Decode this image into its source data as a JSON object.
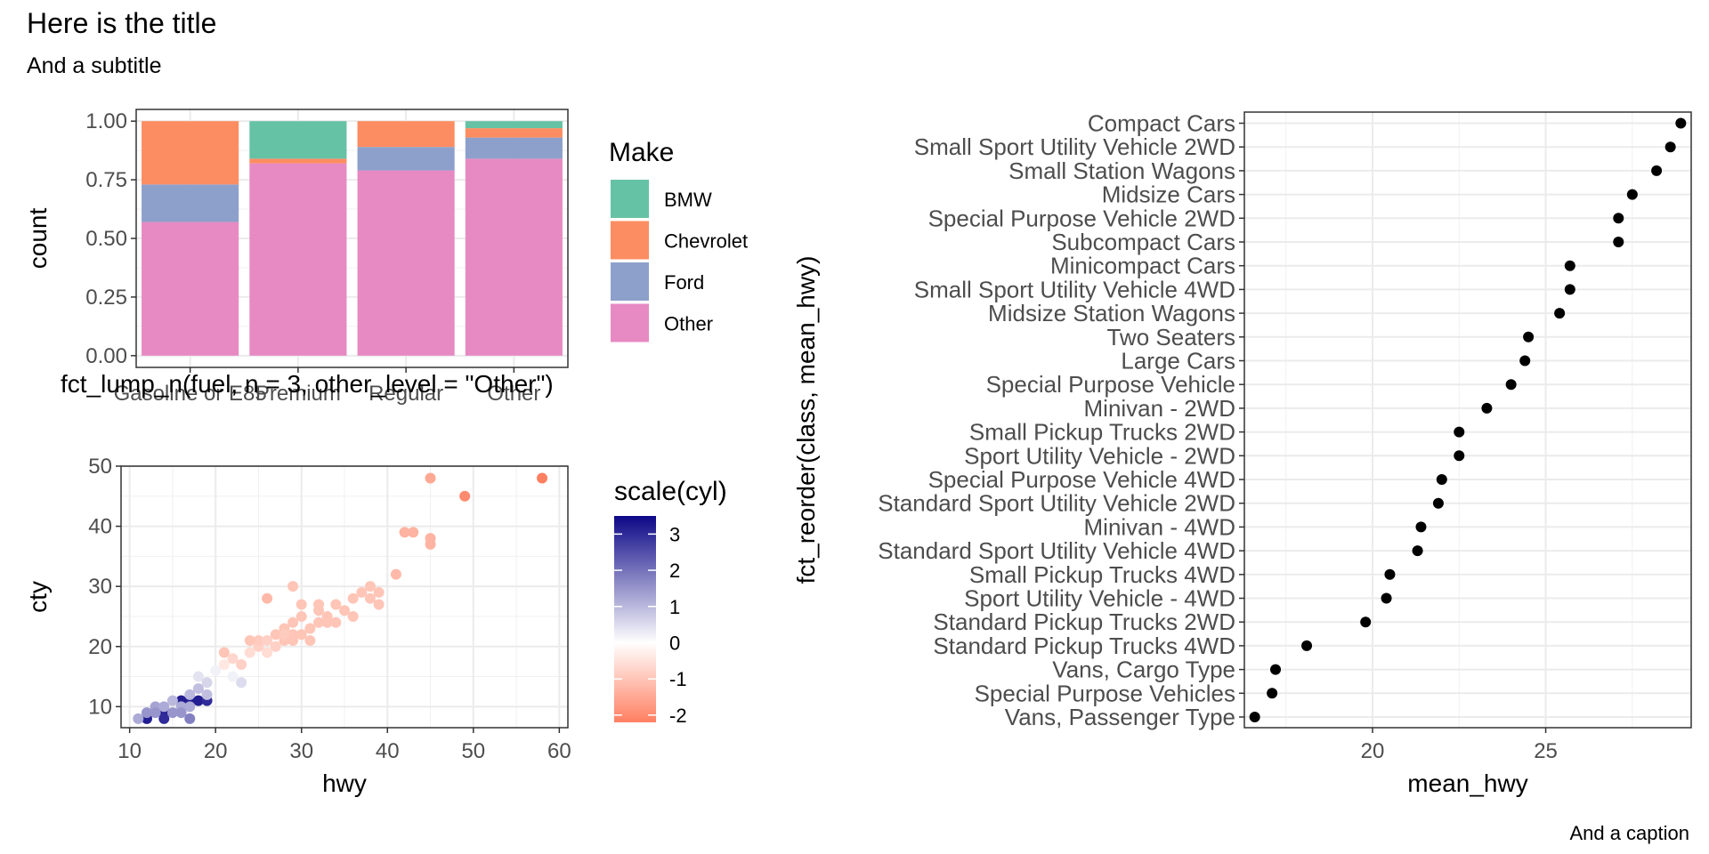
{
  "page": {
    "title": "Here is the title",
    "subtitle": "And a subtitle",
    "caption": "And a caption"
  },
  "chart_data": [
    {
      "type": "bar",
      "stacked": "fill",
      "xlabel": "fct_lump_n(fuel, n = 3, other_level = \"Other\")",
      "ylabel": "count",
      "ylim": [
        0,
        1
      ],
      "yticks": [
        "0.00",
        "0.25",
        "0.50",
        "0.75",
        "1.00"
      ],
      "categories": [
        "Gasoline or E85",
        "Premium",
        "Regular",
        "Other"
      ],
      "series": [
        {
          "name": "Other",
          "color": "#E78AC3",
          "values": [
            0.57,
            0.82,
            0.79,
            0.84
          ]
        },
        {
          "name": "Ford",
          "color": "#8DA0CB",
          "values": [
            0.16,
            0.0,
            0.1,
            0.09
          ]
        },
        {
          "name": "Chevrolet",
          "color": "#FC8D62",
          "values": [
            0.27,
            0.02,
            0.11,
            0.04
          ]
        },
        {
          "name": "BMW",
          "color": "#66C2A5",
          "values": [
            0.0,
            0.16,
            0.0,
            0.03
          ]
        }
      ],
      "legend": {
        "title": "Make",
        "position": "right",
        "entries": [
          {
            "label": "BMW",
            "color": "#66C2A5"
          },
          {
            "label": "Chevrolet",
            "color": "#FC8D62"
          },
          {
            "label": "Ford",
            "color": "#8DA0CB"
          },
          {
            "label": "Other",
            "color": "#E78AC3"
          }
        ]
      }
    },
    {
      "type": "scatter",
      "xlabel": "hwy",
      "ylabel": "cty",
      "xlim": [
        9,
        61
      ],
      "ylim": [
        6.5,
        50
      ],
      "xticks": [
        10,
        20,
        30,
        40,
        50,
        60
      ],
      "yticks": [
        10,
        20,
        30,
        40,
        50
      ],
      "points": [
        [
          12,
          8,
          3.2
        ],
        [
          14,
          9,
          3.2
        ],
        [
          14,
          8,
          3.0
        ],
        [
          16,
          11,
          3.2
        ],
        [
          17,
          11,
          3.2
        ],
        [
          18,
          11,
          3.2
        ],
        [
          19,
          11,
          3.0
        ],
        [
          11,
          8,
          1.2
        ],
        [
          12,
          9,
          1.5
        ],
        [
          13,
          10,
          1.3
        ],
        [
          14,
          10,
          1.2
        ],
        [
          15,
          11,
          1.0
        ],
        [
          15,
          9,
          1.5
        ],
        [
          16,
          10,
          1.2
        ],
        [
          16,
          9,
          1.5
        ],
        [
          17,
          12,
          1.0
        ],
        [
          17,
          10,
          1.2
        ],
        [
          18,
          13,
          0.9
        ],
        [
          19,
          12,
          0.9
        ],
        [
          19,
          14,
          0.6
        ],
        [
          13,
          9,
          1.5
        ],
        [
          17,
          8,
          1.8
        ],
        [
          18,
          15,
          0.4
        ],
        [
          20,
          16,
          0.2
        ],
        [
          22,
          15,
          0.2
        ],
        [
          23,
          14,
          0.5
        ],
        [
          24,
          16,
          0.0
        ],
        [
          21,
          17,
          -0.4
        ],
        [
          22,
          18,
          -0.7
        ],
        [
          23,
          17,
          -0.8
        ],
        [
          24,
          19,
          -0.6
        ],
        [
          25,
          20,
          -0.8
        ],
        [
          26,
          19,
          -0.6
        ],
        [
          26,
          28,
          -1.2
        ],
        [
          27,
          20,
          -0.8
        ],
        [
          27,
          22,
          -1.0
        ],
        [
          28,
          21,
          -1.0
        ],
        [
          28,
          23,
          -1.0
        ],
        [
          29,
          22,
          -1.0
        ],
        [
          29,
          24,
          -1.0
        ],
        [
          29,
          21,
          -1.0
        ],
        [
          30,
          22,
          -1.0
        ],
        [
          30,
          25,
          -1.0
        ],
        [
          30,
          27,
          -1.0
        ],
        [
          31,
          23,
          -1.0
        ],
        [
          31,
          21,
          -1.0
        ],
        [
          32,
          24,
          -1.0
        ],
        [
          32,
          26,
          -1.0
        ],
        [
          32,
          27,
          -1.0
        ],
        [
          33,
          25,
          -1.0
        ],
        [
          33,
          24,
          -1.0
        ],
        [
          34,
          24,
          -1.0
        ],
        [
          34,
          27,
          -1.0
        ],
        [
          35,
          26,
          -1.0
        ],
        [
          36,
          28,
          -1.0
        ],
        [
          37,
          29,
          -1.0
        ],
        [
          36,
          25,
          -1.0
        ],
        [
          29,
          30,
          -1.0
        ],
        [
          25,
          21,
          -0.9
        ],
        [
          26,
          21,
          -0.8
        ],
        [
          28,
          22,
          -0.9
        ],
        [
          24,
          21,
          -1.0
        ],
        [
          21,
          19,
          -1.0
        ],
        [
          38,
          28,
          -1.0
        ],
        [
          39,
          29,
          -1.0
        ],
        [
          38,
          30,
          -1.0
        ],
        [
          39,
          27,
          -1.0
        ],
        [
          41,
          32,
          -1.2
        ],
        [
          42,
          39,
          -1.3
        ],
        [
          43,
          39,
          -1.3
        ],
        [
          45,
          48,
          -1.5
        ],
        [
          45,
          38,
          -1.3
        ],
        [
          45,
          37,
          -1.3
        ],
        [
          49,
          45,
          -2.0
        ],
        [
          58,
          48,
          -2.2
        ]
      ],
      "color_scale": {
        "title": "scale(cyl)",
        "low": "#FF7F61",
        "mid": "#FFFFFF",
        "high": "#0D0887",
        "domain": [
          -2.2,
          3.5
        ],
        "ticks": [
          "3",
          "2",
          "1",
          "0",
          "-1",
          "-2"
        ]
      }
    },
    {
      "type": "scatter",
      "orientation": "horizontal",
      "xlabel": "mean_hwy",
      "ylabel": "fct_reorder(class, mean_hwy)",
      "xlim": [
        16.3,
        29.2
      ],
      "xticks": [
        20,
        25
      ],
      "points": [
        {
          "label": "Compact Cars",
          "value": 28.9
        },
        {
          "label": "Small Sport Utility Vehicle 2WD",
          "value": 28.6
        },
        {
          "label": "Small Station Wagons",
          "value": 28.2
        },
        {
          "label": "Midsize Cars",
          "value": 27.5
        },
        {
          "label": "Special Purpose Vehicle 2WD",
          "value": 27.1
        },
        {
          "label": "Subcompact Cars",
          "value": 27.1
        },
        {
          "label": "Minicompact Cars",
          "value": 25.7
        },
        {
          "label": "Small Sport Utility Vehicle 4WD",
          "value": 25.7
        },
        {
          "label": "Midsize Station Wagons",
          "value": 25.4
        },
        {
          "label": "Two Seaters",
          "value": 24.5
        },
        {
          "label": "Large Cars",
          "value": 24.4
        },
        {
          "label": "Special Purpose Vehicle",
          "value": 24.0
        },
        {
          "label": "Minivan - 2WD",
          "value": 23.3
        },
        {
          "label": "Small Pickup Trucks 2WD",
          "value": 22.5
        },
        {
          "label": "Sport Utility Vehicle - 2WD",
          "value": 22.5
        },
        {
          "label": "Special Purpose Vehicle 4WD",
          "value": 22.0
        },
        {
          "label": "Standard Sport Utility Vehicle 2WD",
          "value": 21.9
        },
        {
          "label": "Minivan - 4WD",
          "value": 21.4
        },
        {
          "label": "Standard Sport Utility Vehicle 4WD",
          "value": 21.3
        },
        {
          "label": "Small Pickup Trucks 4WD",
          "value": 20.5
        },
        {
          "label": "Sport Utility Vehicle - 4WD",
          "value": 20.4
        },
        {
          "label": "Standard Pickup Trucks 2WD",
          "value": 19.8
        },
        {
          "label": "Standard Pickup Trucks 4WD",
          "value": 18.1
        },
        {
          "label": "Vans, Cargo Type",
          "value": 17.2
        },
        {
          "label": "Special Purpose Vehicles",
          "value": 17.1
        },
        {
          "label": "Vans, Passenger Type",
          "value": 16.6
        }
      ]
    }
  ]
}
